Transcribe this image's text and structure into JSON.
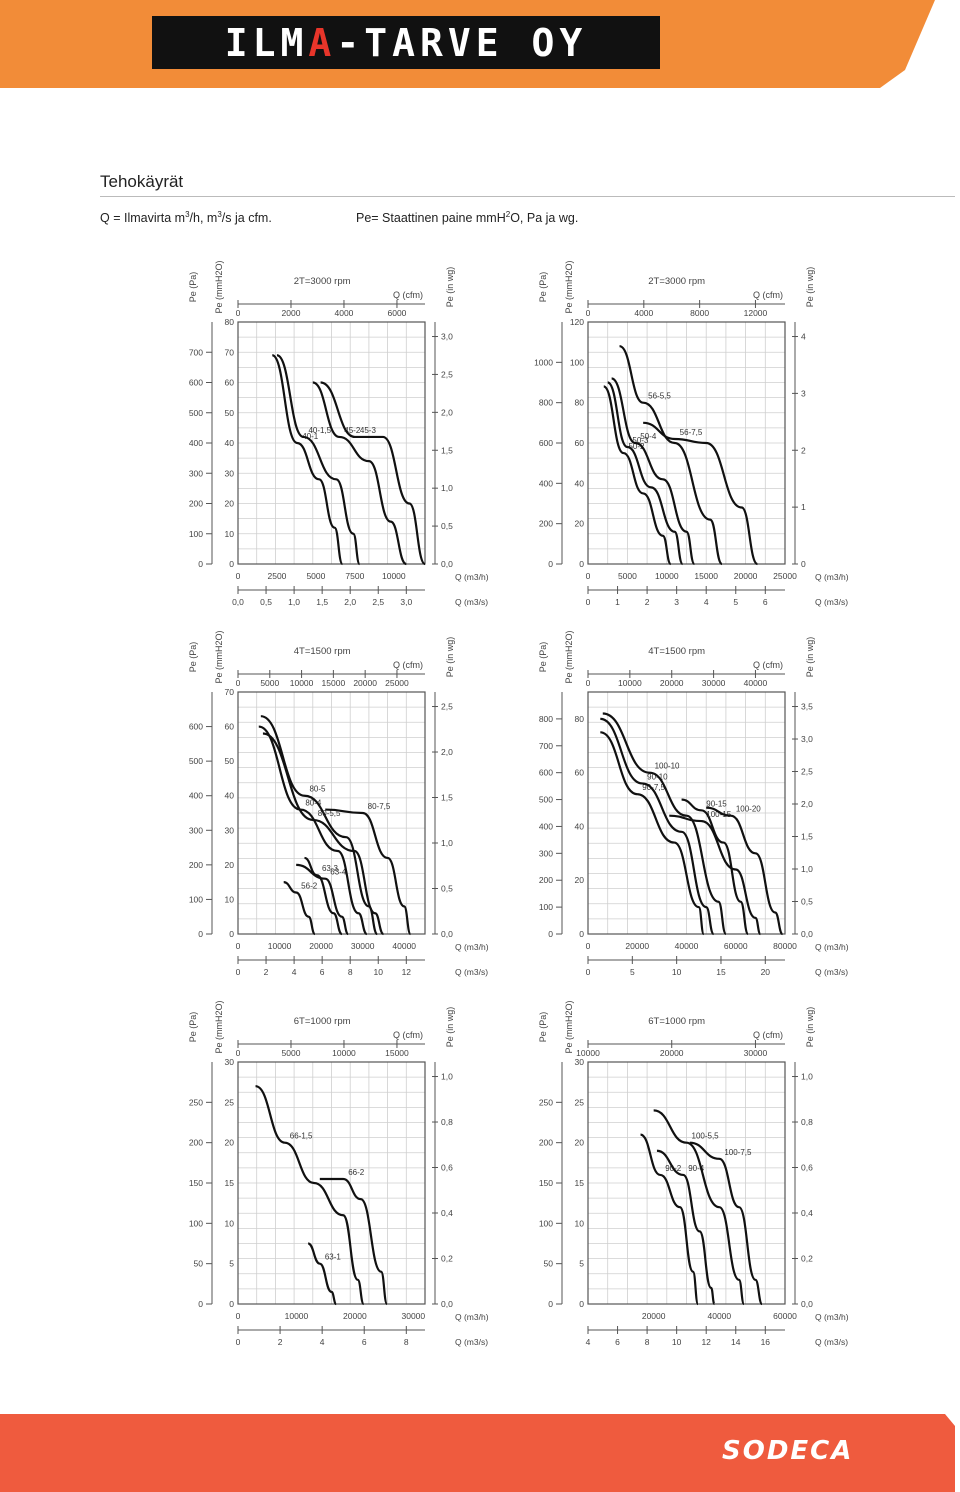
{
  "header": {
    "logo_part1": "ILM",
    "logo_accent": "A",
    "logo_part2": "-TARVE OY",
    "band_color": "#f28c38"
  },
  "page": {
    "title": "Tehokäyrät",
    "legend_q_prefix": "Q = Ilmavirta m",
    "legend_q_sup1": "3",
    "legend_q_mid": "/h, m",
    "legend_q_sup2": "3",
    "legend_q_suffix": "/s ja cfm.",
    "legend_pe_prefix": "Pe= Staattinen paine mmH",
    "legend_pe_sup": "2",
    "legend_pe_suffix": "O, Pa ja wg."
  },
  "footer": {
    "brand": "SODECA",
    "band_color": "#ef5b3e"
  },
  "chart_data": [
    {
      "type": "line",
      "title": "2T=3000 rpm",
      "ylabels": [
        "Pe (Pa)",
        "Pe (mmH2O)",
        "Pe (in wg)"
      ],
      "xlabels": [
        "Q (cfm)",
        "Q (m3/h)",
        "Q (m3/s)"
      ],
      "xlim": [
        0,
        12000
      ],
      "ylim": [
        0,
        80
      ],
      "x_ticks": [
        0,
        2500,
        5000,
        7500,
        10000
      ],
      "y_ticks": [
        0,
        10,
        20,
        30,
        40,
        50,
        60,
        70,
        80
      ],
      "pa_ticks": [
        0,
        100,
        200,
        300,
        400,
        500,
        600,
        700
      ],
      "inwg_ticks": [
        "0,0",
        "0,5",
        "1,0",
        "1,5",
        "2,0",
        "2,5",
        "3,0"
      ],
      "cfm_ticks": [
        "0",
        "2000",
        "4000",
        "6000"
      ],
      "ms_ticks": [
        "0,0",
        "0,5",
        "1,0",
        "1,5",
        "2,0",
        "2,5",
        "3,0"
      ],
      "series": [
        {
          "name": "40-1",
          "points": [
            [
              2200,
              69
            ],
            [
              3800,
              40
            ],
            [
              5200,
              28
            ],
            [
              6200,
              12
            ],
            [
              6700,
              0
            ]
          ]
        },
        {
          "name": "40-1,5",
          "points": [
            [
              2500,
              69
            ],
            [
              4200,
              42
            ],
            [
              6300,
              28
            ],
            [
              7400,
              10
            ],
            [
              7800,
              0
            ]
          ]
        },
        {
          "name": "45-2",
          "points": [
            [
              4800,
              60
            ],
            [
              6500,
              42
            ],
            [
              8400,
              34
            ],
            [
              9800,
              14
            ],
            [
              10800,
              0
            ]
          ]
        },
        {
          "name": "45-3",
          "points": [
            [
              5300,
              60
            ],
            [
              7500,
              42
            ],
            [
              9300,
              42
            ],
            [
              11000,
              20
            ],
            [
              12000,
              0
            ]
          ]
        }
      ]
    },
    {
      "type": "line",
      "title": "2T=3000 rpm",
      "ylabels": [
        "Pe (Pa)",
        "Pe (mmH2O)",
        "Pe (in wg)"
      ],
      "xlabels": [
        "Q (cfm)",
        "Q (m3/h)",
        "Q (m3/s)"
      ],
      "xlim": [
        0,
        25000
      ],
      "ylim": [
        0,
        120
      ],
      "x_ticks": [
        0,
        5000,
        10000,
        15000,
        20000,
        25000
      ],
      "y_ticks": [
        0,
        20,
        40,
        60,
        80,
        100,
        120
      ],
      "pa_ticks": [
        0,
        200,
        400,
        600,
        800,
        1000
      ],
      "inwg_ticks": [
        "0",
        "1",
        "2",
        "3",
        "4"
      ],
      "cfm_ticks": [
        "0",
        "4000",
        "8000",
        "12000"
      ],
      "ms_ticks": [
        "0",
        "1",
        "2",
        "3",
        "4",
        "5",
        "6"
      ],
      "series": [
        {
          "name": "50-2",
          "points": [
            [
              2000,
              88
            ],
            [
              4500,
              55
            ],
            [
              7000,
              35
            ],
            [
              9500,
              14
            ],
            [
              10500,
              0
            ]
          ]
        },
        {
          "name": "50-3",
          "points": [
            [
              2500,
              90
            ],
            [
              5000,
              58
            ],
            [
              8000,
              38
            ],
            [
              11000,
              16
            ],
            [
              12000,
              0
            ]
          ]
        },
        {
          "name": "50-4",
          "points": [
            [
              3000,
              92
            ],
            [
              6000,
              60
            ],
            [
              9500,
              42
            ],
            [
              12500,
              16
            ],
            [
              13500,
              0
            ]
          ]
        },
        {
          "name": "56-5,5",
          "points": [
            [
              4000,
              108
            ],
            [
              7000,
              80
            ],
            [
              11000,
              60
            ],
            [
              15500,
              22
            ],
            [
              17000,
              0
            ]
          ]
        },
        {
          "name": "56-7,5",
          "points": [
            [
              7000,
              70
            ],
            [
              11000,
              62
            ],
            [
              15000,
              60
            ],
            [
              19500,
              28
            ],
            [
              21500,
              0
            ]
          ]
        }
      ]
    },
    {
      "type": "line",
      "title": "4T=1500 rpm",
      "ylabels": [
        "Pe (Pa)",
        "Pe (mmH2O)",
        "Pe (in wg)"
      ],
      "xlabels": [
        "Q (cfm)",
        "Q (m3/h)",
        "Q (m3/s)"
      ],
      "xlim": [
        0,
        45000
      ],
      "ylim": [
        0,
        70
      ],
      "x_ticks": [
        0,
        10000,
        20000,
        30000,
        40000
      ],
      "y_ticks": [
        0,
        10,
        20,
        30,
        40,
        50,
        60,
        70
      ],
      "pa_ticks": [
        0,
        100,
        200,
        300,
        400,
        500,
        600
      ],
      "inwg_ticks": [
        "0,0",
        "0,5",
        "1,0",
        "1,5",
        "2,0",
        "2,5"
      ],
      "cfm_ticks": [
        "0",
        "5000",
        "10000",
        "15000",
        "20000",
        "25000"
      ],
      "ms_ticks": [
        "0",
        "2",
        "4",
        "6",
        "8",
        "10",
        "12"
      ],
      "series": [
        {
          "name": "56-2",
          "points": [
            [
              11000,
              15
            ],
            [
              14000,
              12
            ],
            [
              17000,
              5
            ],
            [
              18500,
              0
            ]
          ]
        },
        {
          "name": "63-3",
          "points": [
            [
              16000,
              22
            ],
            [
              19000,
              17
            ],
            [
              23000,
              6
            ],
            [
              25000,
              0
            ]
          ]
        },
        {
          "name": "63-4",
          "points": [
            [
              14000,
              20
            ],
            [
              21000,
              16
            ],
            [
              25000,
              5
            ],
            [
              26500,
              0
            ]
          ]
        },
        {
          "name": "80-4",
          "points": [
            [
              5000,
              60
            ],
            [
              15000,
              36
            ],
            [
              24000,
              24
            ],
            [
              29000,
              6
            ],
            [
              31000,
              0
            ]
          ]
        },
        {
          "name": "80-5",
          "points": [
            [
              5500,
              63
            ],
            [
              16000,
              40
            ],
            [
              26000,
              28
            ],
            [
              31500,
              8
            ],
            [
              33500,
              0
            ]
          ]
        },
        {
          "name": "80-5,5",
          "points": [
            [
              6000,
              58
            ],
            [
              18000,
              33
            ],
            [
              28000,
              24
            ],
            [
              33000,
              6
            ],
            [
              35000,
              0
            ]
          ]
        },
        {
          "name": "80-7,5",
          "points": [
            [
              21000,
              36
            ],
            [
              30000,
              35
            ],
            [
              36000,
              22
            ],
            [
              40000,
              8
            ],
            [
              41500,
              0
            ]
          ]
        }
      ]
    },
    {
      "type": "line",
      "title": "4T=1500 rpm",
      "ylabels": [
        "Pe (Pa)",
        "Pe (mmH2O)",
        "Pe (in wg)"
      ],
      "xlabels": [
        "Q (cfm)",
        "Q (m3/h)",
        "Q (m3/s)"
      ],
      "xlim": [
        0,
        80000
      ],
      "ylim": [
        0,
        90
      ],
      "x_ticks": [
        0,
        20000,
        40000,
        60000,
        80000
      ],
      "y_ticks": [
        0,
        20,
        40,
        60,
        80
      ],
      "pa_ticks": [
        0,
        100,
        200,
        300,
        400,
        500,
        600,
        700,
        800
      ],
      "inwg_ticks": [
        "0,0",
        "0,5",
        "1,0",
        "1,5",
        "2,0",
        "2,5",
        "3,0",
        "3,5"
      ],
      "cfm_ticks": [
        "0",
        "10000",
        "20000",
        "30000",
        "40000"
      ],
      "ms_ticks": [
        "0",
        "5",
        "10",
        "15",
        "20"
      ],
      "series": [
        {
          "name": "90-7,5",
          "points": [
            [
              5000,
              75
            ],
            [
              20000,
              52
            ],
            [
              35000,
              34
            ],
            [
              45000,
              10
            ],
            [
              47000,
              0
            ]
          ]
        },
        {
          "name": "90-10",
          "points": [
            [
              5000,
              80
            ],
            [
              22000,
              56
            ],
            [
              38000,
              38
            ],
            [
              48000,
              10
            ],
            [
              51000,
              0
            ]
          ]
        },
        {
          "name": "90-15",
          "points": [
            [
              38000,
              50
            ],
            [
              46000,
              46
            ],
            [
              55000,
              34
            ],
            [
              62000,
              12
            ],
            [
              65000,
              0
            ]
          ]
        },
        {
          "name": "100-10",
          "points": [
            [
              6000,
              82
            ],
            [
              25000,
              60
            ],
            [
              40000,
              44
            ],
            [
              53000,
              12
            ],
            [
              56000,
              0
            ]
          ]
        },
        {
          "name": "100-15",
          "points": [
            [
              33000,
              44
            ],
            [
              46000,
              42
            ],
            [
              60000,
              24
            ],
            [
              68000,
              6
            ],
            [
              70000,
              0
            ]
          ]
        },
        {
          "name": "100-20",
          "points": [
            [
              48000,
              47
            ],
            [
              58000,
              44
            ],
            [
              68000,
              30
            ],
            [
              76000,
              8
            ],
            [
              79000,
              0
            ]
          ]
        }
      ]
    },
    {
      "type": "line",
      "title": "6T=1000 rpm",
      "ylabels": [
        "Pe (Pa)",
        "Pe (mmH2O)",
        "Pe (in wg)"
      ],
      "xlabels": [
        "Q (cfm)",
        "Q (m3/h)",
        "Q (m3/s)"
      ],
      "xlim": [
        0,
        32000
      ],
      "ylim": [
        0,
        30
      ],
      "x_ticks": [
        0,
        10000,
        20000,
        30000
      ],
      "y_ticks": [
        0,
        5,
        10,
        15,
        20,
        25,
        30
      ],
      "pa_ticks": [
        0,
        50,
        100,
        150,
        200,
        250
      ],
      "inwg_ticks": [
        "0,0",
        "0,2",
        "0,4",
        "0,6",
        "0,8",
        "1,0"
      ],
      "cfm_ticks": [
        "0",
        "5000",
        "10000",
        "15000"
      ],
      "ms_ticks": [
        "0",
        "2",
        "4",
        "6",
        "8"
      ],
      "series": [
        {
          "name": "63-1",
          "points": [
            [
              12000,
              7.5
            ],
            [
              14000,
              5
            ],
            [
              16000,
              1.5
            ],
            [
              16800,
              0
            ]
          ]
        },
        {
          "name": "66-1,5",
          "points": [
            [
              3000,
              27
            ],
            [
              8000,
              20
            ],
            [
              13000,
              15
            ],
            [
              18000,
              11
            ],
            [
              20500,
              3
            ],
            [
              21500,
              0
            ]
          ]
        },
        {
          "name": "66-2",
          "points": [
            [
              14000,
              15.5
            ],
            [
              18000,
              15.5
            ],
            [
              21000,
              13
            ],
            [
              24500,
              4
            ],
            [
              25500,
              0
            ]
          ]
        }
      ]
    },
    {
      "type": "line",
      "title": "6T=1000 rpm",
      "ylabels": [
        "Pe (Pa)",
        "Pe (mmH2O)",
        "Pe (in wg)"
      ],
      "xlabels": [
        "Q (cfm)",
        "Q (m3/h)",
        "Q (m3/s)"
      ],
      "xlim": [
        0,
        60000
      ],
      "ylim": [
        0,
        30
      ],
      "x_ticks": [
        20000,
        40000,
        60000
      ],
      "y_ticks": [
        0,
        5,
        10,
        15,
        20,
        25,
        30
      ],
      "pa_ticks": [
        0,
        50,
        100,
        150,
        200,
        250
      ],
      "inwg_ticks": [
        "0,0",
        "0,2",
        "0,4",
        "0,6",
        "0,8",
        "1,0"
      ],
      "cfm_ticks": [
        "10000",
        "20000",
        "30000"
      ],
      "ms_ticks": [
        "4",
        "6",
        "8",
        "10",
        "12",
        "14",
        "16"
      ],
      "series": [
        {
          "name": "90-2",
          "points": [
            [
              16000,
              21
            ],
            [
              22000,
              16
            ],
            [
              28000,
              12
            ],
            [
              32000,
              4
            ],
            [
              33500,
              0
            ]
          ]
        },
        {
          "name": "90-4",
          "points": [
            [
              21000,
              19
            ],
            [
              29000,
              16
            ],
            [
              34000,
              9
            ],
            [
              37500,
              2
            ],
            [
              38500,
              0
            ]
          ]
        },
        {
          "name": "100-5,5",
          "points": [
            [
              20000,
              24
            ],
            [
              30000,
              20
            ],
            [
              40000,
              12
            ],
            [
              46000,
              3
            ],
            [
              47500,
              0
            ]
          ]
        },
        {
          "name": "100-7,5",
          "points": [
            [
              31000,
              20
            ],
            [
              40000,
              18
            ],
            [
              46000,
              12
            ],
            [
              51000,
              3
            ],
            [
              53000,
              0
            ]
          ]
        }
      ]
    }
  ]
}
